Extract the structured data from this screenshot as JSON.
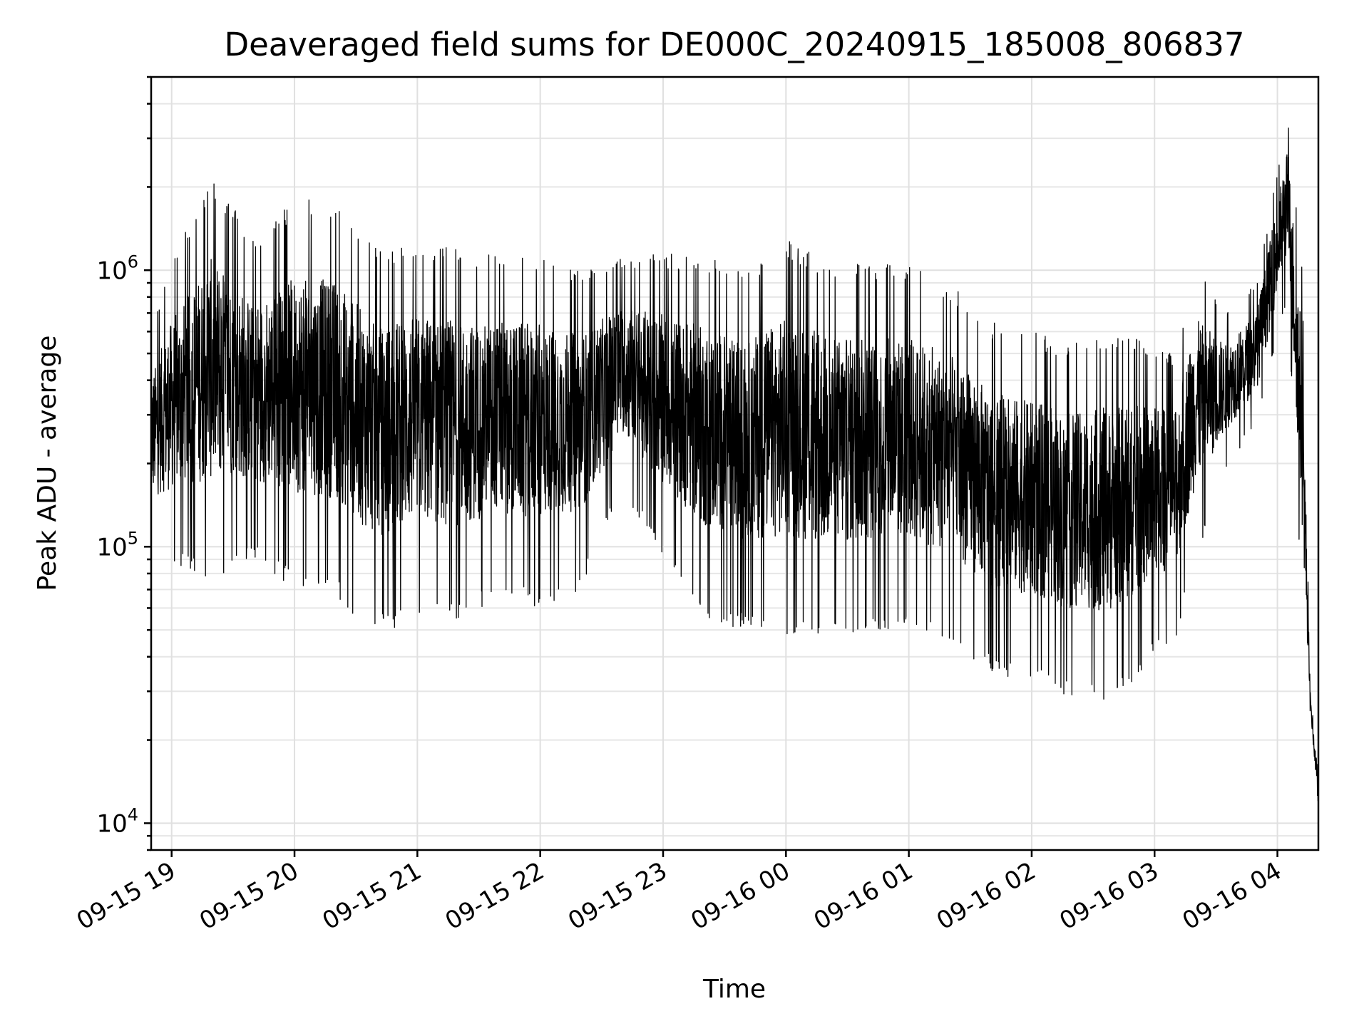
{
  "chart_data": {
    "type": "line",
    "title": "Deaveraged field sums for DE000C_20240915_185008_806837",
    "xlabel": "Time",
    "ylabel": "Peak ADU - average",
    "y_scale": "log",
    "ylim": [
      8000,
      5000000
    ],
    "xlim": [
      "2024-09-15 18:50",
      "2024-09-16 04:20"
    ],
    "grid": true,
    "legend": "none",
    "colors": {
      "line": "#000000",
      "grid": "#e0e0e0"
    },
    "x_ticks": [
      {
        "time": "2024-09-15 19:00",
        "label": "09-15 19"
      },
      {
        "time": "2024-09-15 20:00",
        "label": "09-15 20"
      },
      {
        "time": "2024-09-15 21:00",
        "label": "09-15 21"
      },
      {
        "time": "2024-09-15 22:00",
        "label": "09-15 22"
      },
      {
        "time": "2024-09-15 23:00",
        "label": "09-15 23"
      },
      {
        "time": "2024-09-16 00:00",
        "label": "09-16 00"
      },
      {
        "time": "2024-09-16 01:00",
        "label": "09-16 01"
      },
      {
        "time": "2024-09-16 02:00",
        "label": "09-16 02"
      },
      {
        "time": "2024-09-16 03:00",
        "label": "09-16 03"
      },
      {
        "time": "2024-09-16 04:00",
        "label": "09-16 04"
      }
    ],
    "y_ticks": [
      {
        "value": 10000,
        "base": "10",
        "exp": "4"
      },
      {
        "value": 100000,
        "base": "10",
        "exp": "5"
      },
      {
        "value": 1000000,
        "base": "10",
        "exp": "6"
      }
    ],
    "series": [
      {
        "envelope": [
          {
            "time": "2024-09-15 18:50",
            "min": 95000,
            "max": 600000
          },
          {
            "time": "2024-09-15 19:00",
            "min": 85000,
            "max": 1100000
          },
          {
            "time": "2024-09-15 19:20",
            "min": 75000,
            "max": 2200000
          },
          {
            "time": "2024-09-15 19:40",
            "min": 90000,
            "max": 1300000
          },
          {
            "time": "2024-09-15 20:00",
            "min": 70000,
            "max": 1800000
          },
          {
            "time": "2024-09-15 20:20",
            "min": 65000,
            "max": 1800000
          },
          {
            "time": "2024-09-15 20:40",
            "min": 48000,
            "max": 1200000
          },
          {
            "time": "2024-09-15 21:00",
            "min": 55000,
            "max": 1300000
          },
          {
            "time": "2024-09-15 21:20",
            "min": 55000,
            "max": 1200000
          },
          {
            "time": "2024-09-15 21:40",
            "min": 65000,
            "max": 1150000
          },
          {
            "time": "2024-09-15 22:00",
            "min": 60000,
            "max": 1150000
          },
          {
            "time": "2024-09-15 22:20",
            "min": 70000,
            "max": 1000000
          },
          {
            "time": "2024-09-15 22:40",
            "min": 160000,
            "max": 1100000
          },
          {
            "time": "2024-09-15 23:00",
            "min": 90000,
            "max": 1150000
          },
          {
            "time": "2024-09-15 23:20",
            "min": 55000,
            "max": 1150000
          },
          {
            "time": "2024-09-15 23:40",
            "min": 50000,
            "max": 1000000
          },
          {
            "time": "2024-09-16 00:00",
            "min": 48000,
            "max": 1300000
          },
          {
            "time": "2024-09-16 00:20",
            "min": 45000,
            "max": 1100000
          },
          {
            "time": "2024-09-16 00:40",
            "min": 48000,
            "max": 1050000
          },
          {
            "time": "2024-09-16 01:00",
            "min": 50000,
            "max": 1050000
          },
          {
            "time": "2024-09-16 01:20",
            "min": 45000,
            "max": 900000
          },
          {
            "time": "2024-09-16 01:40",
            "min": 35000,
            "max": 650000
          },
          {
            "time": "2024-09-16 02:00",
            "min": 32000,
            "max": 600000
          },
          {
            "time": "2024-09-16 02:20",
            "min": 28000,
            "max": 550000
          },
          {
            "time": "2024-09-16 02:40",
            "min": 27000,
            "max": 600000
          },
          {
            "time": "2024-09-16 03:00",
            "min": 40000,
            "max": 550000
          },
          {
            "time": "2024-09-16 03:10",
            "min": 45000,
            "max": 500000
          },
          {
            "time": "2024-09-16 03:20",
            "min": 90000,
            "max": 1100000
          },
          {
            "time": "2024-09-16 03:35",
            "min": 190000,
            "max": 700000
          },
          {
            "time": "2024-09-16 03:50",
            "min": 280000,
            "max": 900000
          },
          {
            "time": "2024-09-16 04:05",
            "min": 800000,
            "max": 3800000
          },
          {
            "time": "2024-09-16 04:12",
            "min": 60000,
            "max": 1100000
          },
          {
            "time": "2024-09-16 04:16",
            "min": 25000,
            "max": 30000
          },
          {
            "time": "2024-09-16 04:20",
            "min": 10000,
            "max": 16000
          }
        ]
      }
    ]
  }
}
